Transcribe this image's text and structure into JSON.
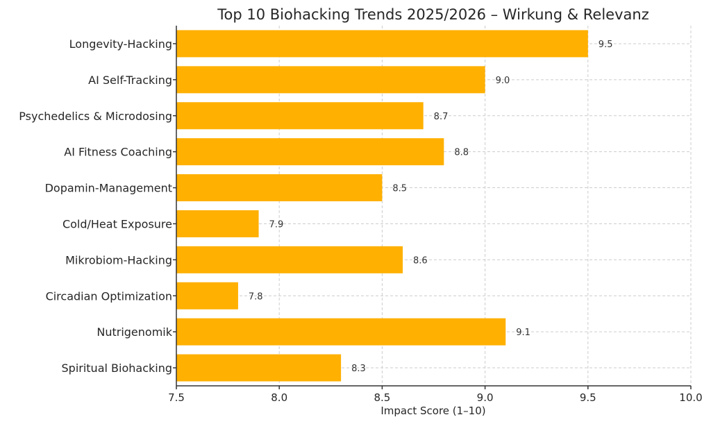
{
  "chart_data": {
    "type": "bar",
    "orientation": "horizontal",
    "title": "Top 10 Biohacking Trends 2025/2026 – Wirkung & Relevanz",
    "xlabel": "Impact Score (1–10)",
    "ylabel": "",
    "xlim": [
      7.5,
      10.0
    ],
    "xticks": [
      "7.5",
      "8.0",
      "8.5",
      "9.0",
      "9.5",
      "10.0"
    ],
    "grid": true,
    "bar_color": "#FFB000",
    "categories": [
      "Longevity-Hacking",
      "AI Self-Tracking",
      "Psychedelics & Microdosing",
      "AI Fitness Coaching",
      "Dopamin-Management",
      "Cold/Heat Exposure",
      "Mikrobiom-Hacking",
      "Circadian Optimization",
      "Nutrigenomik",
      "Spiritual Biohacking"
    ],
    "values": [
      9.5,
      9.0,
      8.7,
      8.8,
      8.5,
      7.9,
      8.6,
      7.8,
      9.1,
      8.3
    ],
    "value_labels": [
      "9.5",
      "9.0",
      "8.7",
      "8.8",
      "8.5",
      "7.9",
      "8.6",
      "7.8",
      "9.1",
      "8.3"
    ]
  }
}
